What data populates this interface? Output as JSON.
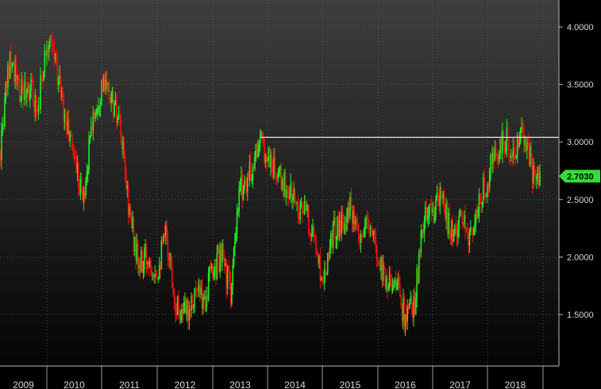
{
  "chart_data": {
    "type": "candlestick",
    "title": "",
    "xlabel": "",
    "ylabel": "",
    "ylim": [
      1.1,
      4.2
    ],
    "xlim": [
      "2009-01",
      "2019-01"
    ],
    "grid": true,
    "yticks": [
      "4.0000",
      "3.5000",
      "3.0000",
      "2.5000",
      "2.0000",
      "1.5000"
    ],
    "ytick_values": [
      4.0,
      3.5,
      3.0,
      2.5,
      2.0,
      1.5
    ],
    "xticks": [
      "2009",
      "2010",
      "2011",
      "2012",
      "2013",
      "2014",
      "2015",
      "2016",
      "2017",
      "2018"
    ],
    "last_value_label": "2.7030",
    "last_value": 2.703,
    "horizontal_line": 3.04,
    "horizontal_line_start": "2013-12",
    "up_color": "#22ee22",
    "down_color": "#ee1111",
    "label_color": "#33dd33",
    "series": [
      {
        "dates": [
          "2009-01",
          "2009-03",
          "2009-05",
          "2009-07",
          "2009-09",
          "2009-11",
          "2010-01",
          "2010-03",
          "2010-05",
          "2010-07",
          "2010-09",
          "2010-11",
          "2011-01",
          "2011-03",
          "2011-05",
          "2011-07",
          "2011-09",
          "2011-11",
          "2012-01",
          "2012-03",
          "2012-05",
          "2012-07",
          "2012-09",
          "2012-11",
          "2013-01",
          "2013-03",
          "2013-05",
          "2013-07",
          "2013-09",
          "2013-11",
          "2014-01",
          "2014-03",
          "2014-05",
          "2014-07",
          "2014-09",
          "2014-11",
          "2015-01",
          "2015-03",
          "2015-05",
          "2015-07",
          "2015-09",
          "2015-11",
          "2016-01",
          "2016-03",
          "2016-05",
          "2016-07",
          "2016-09",
          "2016-11",
          "2017-01",
          "2017-03",
          "2017-05",
          "2017-07",
          "2017-09",
          "2017-11",
          "2018-01",
          "2018-03",
          "2018-05",
          "2018-07",
          "2018-09",
          "2018-11"
        ],
        "values": [
          2.5,
          3.0,
          3.8,
          3.4,
          3.5,
          3.3,
          3.9,
          3.7,
          3.2,
          2.9,
          2.5,
          3.2,
          3.5,
          3.4,
          3.1,
          2.4,
          1.9,
          2.0,
          1.9,
          2.2,
          1.6,
          1.5,
          1.7,
          1.6,
          1.9,
          2.0,
          1.7,
          2.6,
          2.7,
          3.0,
          2.9,
          2.7,
          2.6,
          2.5,
          2.4,
          2.2,
          1.8,
          2.2,
          2.3,
          2.4,
          2.1,
          2.3,
          2.0,
          1.8,
          1.8,
          1.45,
          1.6,
          2.3,
          2.4,
          2.5,
          2.2,
          2.3,
          2.2,
          2.4,
          2.7,
          2.9,
          3.0,
          2.9,
          3.1,
          2.7
        ]
      }
    ]
  }
}
